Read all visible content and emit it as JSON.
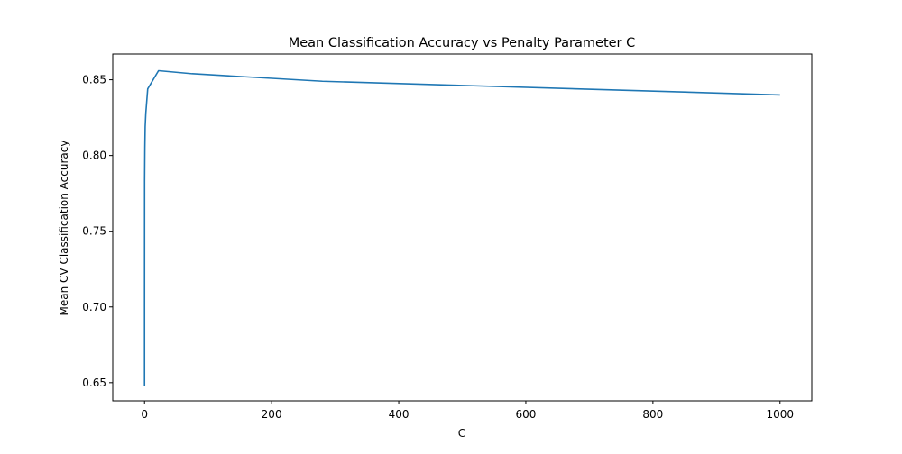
{
  "chart_data": {
    "type": "line",
    "title": "Mean Classification Accuracy vs Penalty Parameter C",
    "xlabel": "C",
    "ylabel": "Mean CV Classification Accuracy",
    "xlim": [
      -50,
      1050
    ],
    "ylim": [
      0.638,
      0.867
    ],
    "xticks": [
      0,
      200,
      400,
      600,
      800,
      1000
    ],
    "xtick_labels": [
      "0",
      "200",
      "400",
      "600",
      "800",
      "1000"
    ],
    "yticks": [
      0.65,
      0.7,
      0.75,
      0.8,
      0.85
    ],
    "ytick_labels": [
      "0.65",
      "0.70",
      "0.75",
      "0.80",
      "0.85"
    ],
    "grid": false,
    "series": [
      {
        "color": "#1f77b4",
        "x": [
          0.001,
          0.01,
          0.1,
          0.5,
          1,
          2,
          5,
          22,
          75,
          280,
          1000
        ],
        "y": [
          0.648,
          0.7,
          0.783,
          0.805,
          0.819,
          0.828,
          0.844,
          0.856,
          0.854,
          0.849,
          0.84
        ]
      }
    ]
  }
}
